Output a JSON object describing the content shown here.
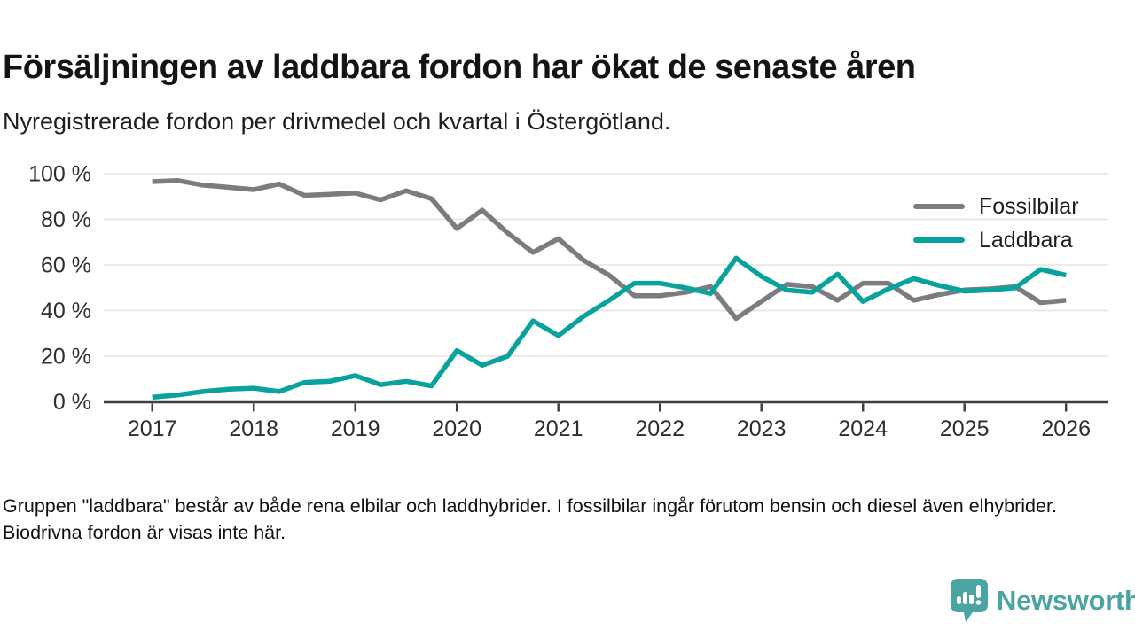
{
  "header": {
    "title": "Försäljningen av laddbara fordon har ökat de senaste åren",
    "subtitle": "Nyregistrerade fordon per drivmedel och kvartal i Östergötland."
  },
  "chart_data": {
    "type": "line",
    "title": "Nyregistrerade fordon per drivmedel och kvartal i Östergötland",
    "x_unit": "quarter",
    "x_start": "2017 Q1",
    "x_end": "2026 Q1",
    "points_per_year": 4,
    "x_tick_labels": [
      "2017",
      "2018",
      "2019",
      "2020",
      "2021",
      "2022",
      "2023",
      "2024",
      "2025",
      "2026"
    ],
    "y_tick_values": [
      0,
      20,
      40,
      60,
      80,
      100
    ],
    "y_tick_labels": [
      "0 %",
      "20 %",
      "40 %",
      "60 %",
      "80 %",
      "100 %"
    ],
    "ylim": [
      0,
      100
    ],
    "grid": "horizontal",
    "legend_position": "top-right",
    "series": [
      {
        "name": "Fossilbilar",
        "color": "#7c7c80",
        "values": [
          96.5,
          97,
          95,
          94,
          93,
          95.5,
          90.5,
          91,
          91.5,
          88.5,
          92.5,
          89,
          76,
          84,
          74,
          65.5,
          71.5,
          62,
          55.5,
          46.5,
          46.5,
          48,
          50.5,
          36.5,
          44,
          51.5,
          50.5,
          44.5,
          52,
          52,
          44.5,
          47,
          49,
          49.5,
          50.5,
          43.5,
          44.5
        ]
      },
      {
        "name": "Laddbara",
        "color": "#0aa29c",
        "values": [
          2,
          3,
          4.5,
          5.5,
          6,
          4.5,
          8.5,
          9,
          11.5,
          7.5,
          9,
          7,
          22.5,
          16,
          20,
          35.5,
          29,
          37.5,
          44.5,
          52,
          52,
          50,
          47.5,
          63,
          55,
          49,
          48,
          56,
          44,
          49.5,
          54,
          51,
          48.5,
          49,
          50,
          58,
          55.5
        ]
      }
    ],
    "axis_color": "#3f3f3f",
    "grid_color": "#e3e3e3",
    "tick_label_color": "#2e2e2e"
  },
  "footer": {
    "note": "Gruppen \"laddbara\" består av både rena elbilar och laddhybrider. I fossilbilar ingår förutom bensin och diesel även elhybrider. Biodrivna fordon är visas inte här."
  },
  "branding": {
    "logo_text": "Newsworthy",
    "logo_color": "#4aa5a2"
  }
}
